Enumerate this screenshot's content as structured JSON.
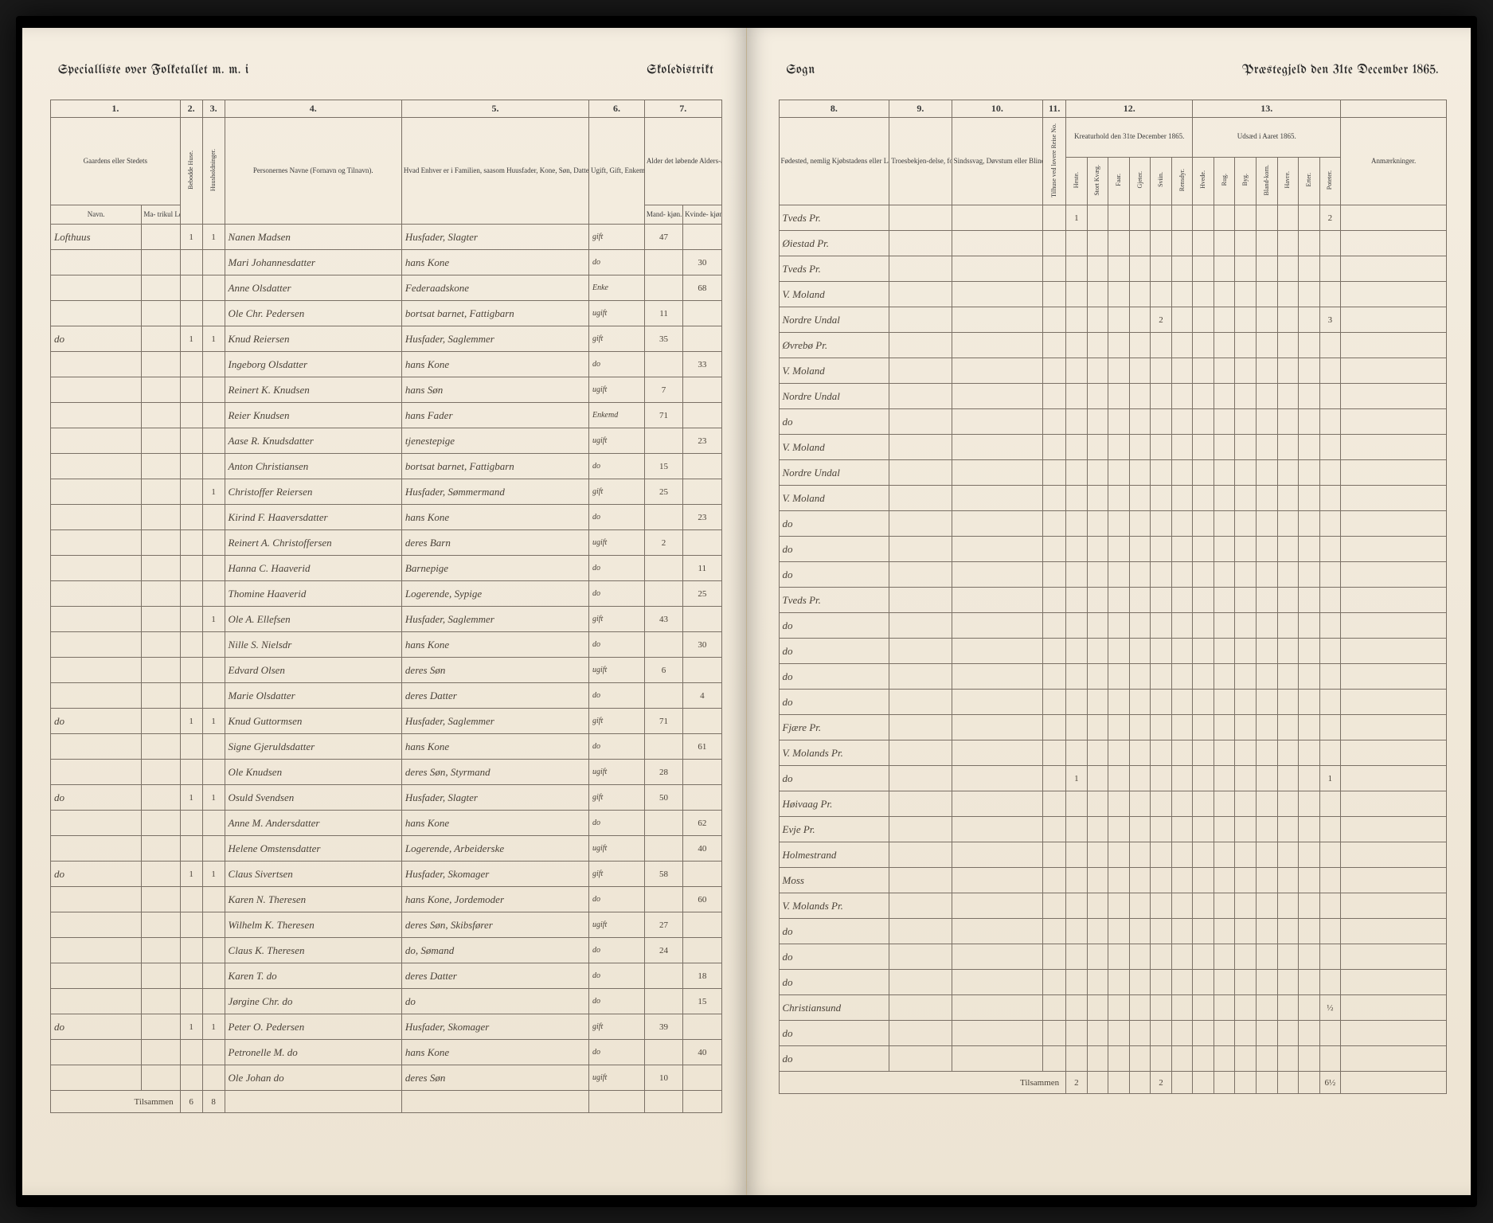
{
  "header": {
    "left_a": "Specialliste over Folketallet m. m. i",
    "left_b": "Skoledistrikt",
    "right_a": "Sogn",
    "right_b": "Præstegjeld den 31te December 1865."
  },
  "left_columns": {
    "nums": [
      "1.",
      "2.",
      "3.",
      "4.",
      "5.",
      "6.",
      "7."
    ],
    "c1": "Gaardens eller Stedets",
    "c1a": "Navn.",
    "c1b": "Ma-\ntrikul\nLøbe\nNo.",
    "c2": "Bebodde Huse.",
    "c3": "Huusholdninger.",
    "c4": "Personernes Navne (Fornavn og Tilnavn).",
    "c5": "Hvad Enhver er i Familien, saasom Huusfader, Kone, Søn, Datter, Forældre, Tjenestetyende eller Logerende; samt Enhvers Stand eller Næringsvei.",
    "c6": "Ugift, Gift, Enkemand, Enke eller Fraskilt (som anføres Frastille med Hensyn til Bord og Seng).",
    "c7": "Alder det løbende Alders-aar iberegnet.",
    "c7a": "Mand-\nkjøn.",
    "c7b": "Kvinde-\nkjøn."
  },
  "right_columns": {
    "nums": [
      "8.",
      "9.",
      "10.",
      "11.",
      "12.",
      "13."
    ],
    "c8": "Fødested, nemlig Kjøbstadens eller Lade-stedets eller (i Landdistrikterne) Præstegjeldets Navn. Forlavidi Rogen er født i Udlandet, anføres Landet.",
    "c9": "Troesbekjen-delse, forsaa-vidt Nogen ikke bekjender sig til Statskirken.",
    "c10": "Sindssvag, Døvstum eller Blind. Er Nogen tingsvag, da tilføi-es, om han (hun) er det fra Barndommen eller senere blev det. Er Nogen Blind, da tilføies om Blind-heden, den ikke var Gangfin.",
    "c11": "Tilhuse ved lovere Reise No.",
    "c12": "Kreaturhold den 31te December 1865.",
    "c12_subs": [
      "Heste.",
      "Stort Kvæg.",
      "Faar.",
      "Gjeter.",
      "Sviin.",
      "Rensdyr."
    ],
    "c13": "Udsæd i Aaret 1865.",
    "c13_subs": [
      "Hvede.",
      "Rug.",
      "Byg.",
      "Bland-korn.",
      "Havre.",
      "Erter.",
      "Poteter."
    ],
    "c14": "Anmærkninger."
  },
  "rows": [
    {
      "sted": "Lofthuus",
      "h": "1",
      "hh": "1",
      "navn": "Nanen Madsen",
      "rolle": "Husfader, Slagter",
      "stand": "gift",
      "mk": "47",
      "kv": "",
      "fod": "Tveds Pr.",
      "k12": {
        "0": "1"
      },
      "k13": {
        "6": "2"
      }
    },
    {
      "sted": "",
      "h": "",
      "hh": "",
      "navn": "Mari Johannesdatter",
      "rolle": "hans Kone",
      "stand": "do",
      "mk": "",
      "kv": "30",
      "fod": "Øiestad Pr."
    },
    {
      "sted": "",
      "h": "",
      "hh": "",
      "navn": "Anne Olsdatter",
      "rolle": "Federaadskone",
      "stand": "Enke",
      "mk": "",
      "kv": "68",
      "fod": "Tveds Pr."
    },
    {
      "sted": "",
      "h": "",
      "hh": "",
      "navn": "Ole Chr. Pedersen",
      "rolle": "bortsat barnet, Fattigbarn",
      "stand": "ugift",
      "mk": "11",
      "kv": "",
      "fod": "V. Moland"
    },
    {
      "sted": "do",
      "h": "1",
      "hh": "1",
      "navn": "Knud Reiersen",
      "rolle": "Husfader, Saglemmer",
      "stand": "gift",
      "mk": "35",
      "kv": "",
      "fod": "Nordre Undal",
      "k12": {
        "4": "2"
      },
      "k13": {
        "6": "3"
      }
    },
    {
      "sted": "",
      "h": "",
      "hh": "",
      "navn": "Ingeborg Olsdatter",
      "rolle": "hans Kone",
      "stand": "do",
      "mk": "",
      "kv": "33",
      "fod": "Øvrebø Pr."
    },
    {
      "sted": "",
      "h": "",
      "hh": "",
      "navn": "Reinert K. Knudsen",
      "rolle": "hans Søn",
      "stand": "ugift",
      "mk": "7",
      "kv": "",
      "fod": "V. Moland"
    },
    {
      "sted": "",
      "h": "",
      "hh": "",
      "navn": "Reier Knudsen",
      "rolle": "hans Fader",
      "stand": "Enkemd",
      "mk": "71",
      "kv": "",
      "fod": "Nordre Undal"
    },
    {
      "sted": "",
      "h": "",
      "hh": "",
      "navn": "Aase R. Knudsdatter",
      "rolle": "tjenestepige",
      "stand": "ugift",
      "mk": "",
      "kv": "23",
      "fod": "do"
    },
    {
      "sted": "",
      "h": "",
      "hh": "",
      "navn": "Anton Christiansen",
      "rolle": "bortsat barnet, Fattigbarn",
      "stand": "do",
      "mk": "15",
      "kv": "",
      "fod": "V. Moland"
    },
    {
      "sted": "",
      "h": "",
      "hh": "1",
      "navn": "Christoffer Reiersen",
      "rolle": "Husfader, Sømmermand",
      "stand": "gift",
      "mk": "25",
      "kv": "",
      "fod": "Nordre Undal"
    },
    {
      "sted": "",
      "h": "",
      "hh": "",
      "navn": "Kirind F. Haaversdatter",
      "rolle": "hans Kone",
      "stand": "do",
      "mk": "",
      "kv": "23",
      "fod": "V. Moland"
    },
    {
      "sted": "",
      "h": "",
      "hh": "",
      "navn": "Reinert A. Christoffersen",
      "rolle": "deres Barn",
      "stand": "ugift",
      "mk": "2",
      "kv": "",
      "fod": "do"
    },
    {
      "sted": "",
      "h": "",
      "hh": "",
      "navn": "Hanna C. Haaverid",
      "rolle": "Barnepige",
      "stand": "do",
      "mk": "",
      "kv": "11",
      "fod": "do"
    },
    {
      "sted": "",
      "h": "",
      "hh": "",
      "navn": "Thomine Haaverid",
      "rolle": "Logerende, Sypige",
      "stand": "do",
      "mk": "",
      "kv": "25",
      "fod": "do"
    },
    {
      "sted": "",
      "h": "",
      "hh": "1",
      "navn": "Ole A. Ellefsen",
      "rolle": "Husfader, Saglemmer",
      "stand": "gift",
      "mk": "43",
      "kv": "",
      "fod": "Tveds Pr."
    },
    {
      "sted": "",
      "h": "",
      "hh": "",
      "navn": "Nille S. Nielsdr",
      "rolle": "hans Kone",
      "stand": "do",
      "mk": "",
      "kv": "30",
      "fod": "do"
    },
    {
      "sted": "",
      "h": "",
      "hh": "",
      "navn": "Edvard Olsen",
      "rolle": "deres Søn",
      "stand": "ugift",
      "mk": "6",
      "kv": "",
      "fod": "do"
    },
    {
      "sted": "",
      "h": "",
      "hh": "",
      "navn": "Marie Olsdatter",
      "rolle": "deres Datter",
      "stand": "do",
      "mk": "",
      "kv": "4",
      "fod": "do"
    },
    {
      "sted": "do",
      "h": "1",
      "hh": "1",
      "navn": "Knud Guttormsen",
      "rolle": "Husfader, Saglemmer",
      "stand": "gift",
      "mk": "71",
      "kv": "",
      "fod": "do"
    },
    {
      "sted": "",
      "h": "",
      "hh": "",
      "navn": "Signe Gjeruldsdatter",
      "rolle": "hans Kone",
      "stand": "do",
      "mk": "",
      "kv": "61",
      "fod": "Fjære Pr."
    },
    {
      "sted": "",
      "h": "",
      "hh": "",
      "navn": "Ole Knudsen",
      "rolle": "deres Søn, Styrmand",
      "stand": "ugift",
      "mk": "28",
      "kv": "",
      "fod": "V. Molands Pr."
    },
    {
      "sted": "do",
      "h": "1",
      "hh": "1",
      "navn": "Osuld Svendsen",
      "rolle": "Husfader, Slagter",
      "stand": "gift",
      "mk": "50",
      "kv": "",
      "fod": "do",
      "k12": {
        "0": "1"
      },
      "k13": {
        "6": "1"
      }
    },
    {
      "sted": "",
      "h": "",
      "hh": "",
      "navn": "Anne M. Andersdatter",
      "rolle": "hans Kone",
      "stand": "do",
      "mk": "",
      "kv": "62",
      "fod": "Høivaag Pr."
    },
    {
      "sted": "",
      "h": "",
      "hh": "",
      "navn": "Helene Omstensdatter",
      "rolle": "Logerende, Arbeiderske",
      "stand": "ugift",
      "mk": "",
      "kv": "40",
      "fod": "Evje Pr."
    },
    {
      "sted": "do",
      "h": "1",
      "hh": "1",
      "navn": "Claus Sivertsen",
      "rolle": "Husfader, Skomager",
      "stand": "gift",
      "mk": "58",
      "kv": "",
      "fod": "Holmestrand"
    },
    {
      "sted": "",
      "h": "",
      "hh": "",
      "navn": "Karen N. Theresen",
      "rolle": "hans Kone, Jordemoder",
      "stand": "do",
      "mk": "",
      "kv": "60",
      "fod": "Moss"
    },
    {
      "sted": "",
      "h": "",
      "hh": "",
      "navn": "Wilhelm K. Theresen",
      "rolle": "deres Søn, Skibsfører",
      "stand": "ugift",
      "mk": "27",
      "kv": "",
      "fod": "V. Molands Pr."
    },
    {
      "sted": "",
      "h": "",
      "hh": "",
      "navn": "Claus K. Theresen",
      "rolle": "do, Sømand",
      "stand": "do",
      "mk": "24",
      "kv": "",
      "fod": "do"
    },
    {
      "sted": "",
      "h": "",
      "hh": "",
      "navn": "Karen T. do",
      "rolle": "deres Datter",
      "stand": "do",
      "mk": "",
      "kv": "18",
      "fod": "do"
    },
    {
      "sted": "",
      "h": "",
      "hh": "",
      "navn": "Jørgine Chr. do",
      "rolle": "do",
      "stand": "do",
      "mk": "",
      "kv": "15",
      "fod": "do"
    },
    {
      "sted": "do",
      "h": "1",
      "hh": "1",
      "navn": "Peter O. Pedersen",
      "rolle": "Husfader, Skomager",
      "stand": "gift",
      "mk": "39",
      "kv": "",
      "fod": "Christiansund",
      "k13": {
        "6": "½"
      }
    },
    {
      "sted": "",
      "h": "",
      "hh": "",
      "navn": "Petronelle M. do",
      "rolle": "hans Kone",
      "stand": "do",
      "mk": "",
      "kv": "40",
      "fod": "do"
    },
    {
      "sted": "",
      "h": "",
      "hh": "",
      "navn": "Ole Johan do",
      "rolle": "deres Søn",
      "stand": "ugift",
      "mk": "10",
      "kv": "",
      "fod": "do"
    }
  ],
  "totals_left": {
    "label": "Tilsammen",
    "h": "6",
    "hh": "8"
  },
  "totals_right": {
    "label": "Tilsammen",
    "k12": [
      "2",
      "",
      "",
      "",
      "2",
      ""
    ],
    "k13": [
      "",
      "",
      "",
      "",
      "",
      "",
      "6½"
    ]
  }
}
